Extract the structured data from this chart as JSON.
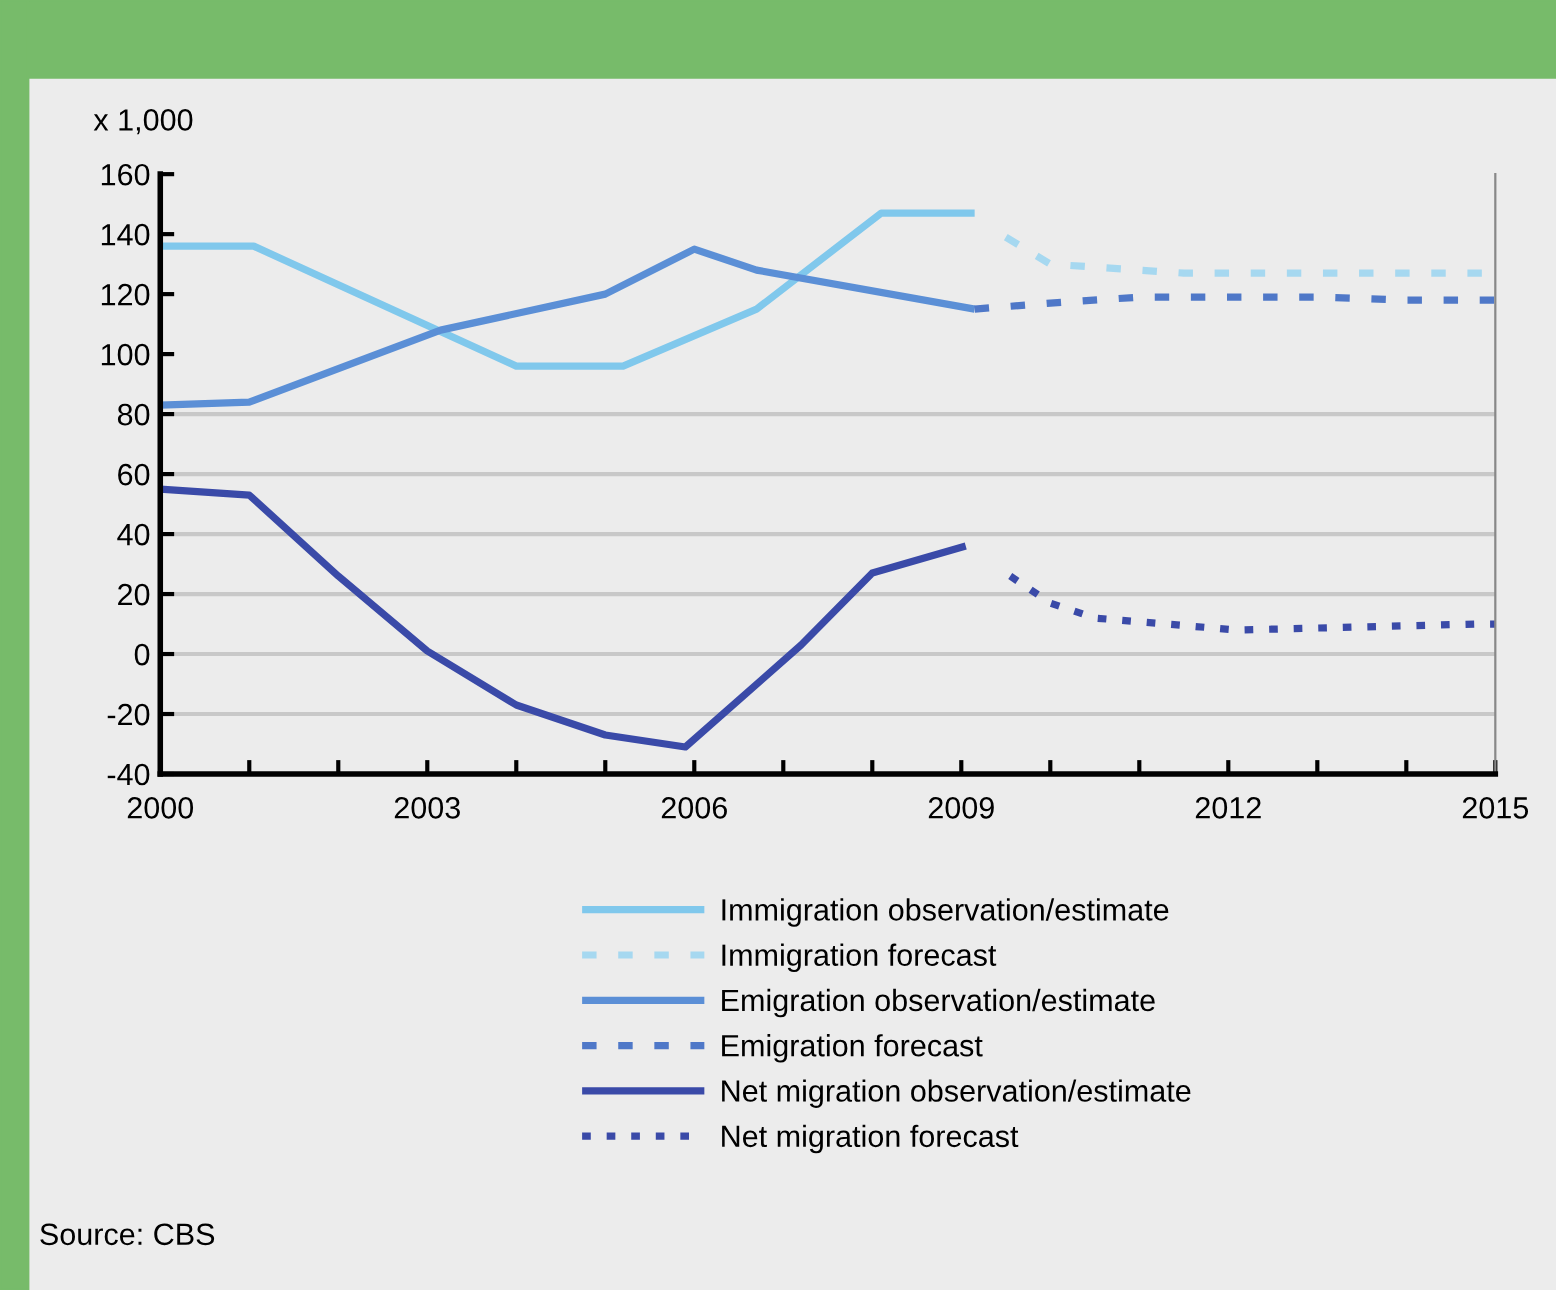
{
  "chart_data": {
    "type": "line",
    "ylabel": "x 1,000",
    "xlim": [
      2000,
      2015
    ],
    "ylim": [
      -40,
      160
    ],
    "xticks": [
      2000,
      {
        "value": 2001,
        "label": null
      },
      {
        "value": 2002,
        "label": null
      },
      2003,
      {
        "value": 2004,
        "label": null
      },
      {
        "value": 2005,
        "label": null
      },
      2006,
      {
        "value": 2007,
        "label": null
      },
      {
        "value": 2008,
        "label": null
      },
      2009,
      {
        "value": 2010,
        "label": null
      },
      {
        "value": 2011,
        "label": null
      },
      2012,
      {
        "value": 2013,
        "label": null
      },
      {
        "value": 2014,
        "label": null
      },
      2015
    ],
    "yticks": [
      -40,
      -20,
      0,
      20,
      40,
      60,
      80,
      100,
      120,
      140,
      160
    ],
    "ref_lines": [
      {
        "axis": "y",
        "value": -20,
        "color": "#c8c8c8"
      },
      {
        "axis": "y",
        "value": 0,
        "color": "#c8c8c8"
      },
      {
        "axis": "y",
        "value": 20,
        "color": "#c8c8c8"
      },
      {
        "axis": "y",
        "value": 40,
        "color": "#c8c8c8"
      },
      {
        "axis": "y",
        "value": 60,
        "color": "#c8c8c8"
      },
      {
        "axis": "y",
        "value": 80,
        "color": "#c8c8c8"
      }
    ],
    "legend": "bottom",
    "series": [
      {
        "name": "Immigration observation/estimate",
        "color": "#80c8ec",
        "line_style": "solid",
        "x": [
          2000,
          2001.05,
          2004.0,
          2005.2,
          2006.7,
          2008.1,
          2009.15
        ],
        "values": [
          136,
          136,
          96,
          96,
          115,
          147,
          147
        ]
      },
      {
        "name": "Immigration forecast",
        "color": "#a6d8f0",
        "line_style": "dashed",
        "x": [
          2009.5,
          2010,
          2010.5,
          2011.5,
          2012.5,
          2013.5,
          2015
        ],
        "values": [
          139,
          130,
          129,
          127,
          127,
          127,
          127
        ]
      },
      {
        "name": "Emigration observation/estimate",
        "color": "#5b8fd6",
        "line_style": "solid",
        "x": [
          2000,
          2001,
          2003.15,
          2005.0,
          2006.0,
          2006.7,
          2009.15
        ],
        "values": [
          83,
          84,
          108,
          120,
          135,
          128,
          115
        ]
      },
      {
        "name": "Emigration forecast",
        "color": "#4f78c8",
        "line_style": "dashed",
        "x": [
          2009.15,
          2010,
          2011,
          2012,
          2013,
          2014,
          2015
        ],
        "values": [
          115,
          117,
          119,
          119,
          119,
          118,
          118
        ]
      },
      {
        "name": "Net migration observation/estimate",
        "color": "#3a4aa8",
        "line_style": "solid",
        "x": [
          2000,
          2001,
          2002.0,
          2003.0,
          2004.0,
          2005.0,
          2005.9,
          2007.2,
          2008.0,
          2009.05
        ],
        "values": [
          55,
          53,
          26,
          1,
          -17,
          -27,
          -31,
          3,
          27,
          36
        ]
      },
      {
        "name": "Net migration forecast",
        "color": "#3a4aa8",
        "line_style": "dotted",
        "x": [
          2009.55,
          2010,
          2010.5,
          2012.1,
          2014.8,
          2015
        ],
        "values": [
          26,
          17,
          12,
          8,
          10,
          10
        ]
      }
    ],
    "annotations": [
      "Source: CBS"
    ]
  }
}
